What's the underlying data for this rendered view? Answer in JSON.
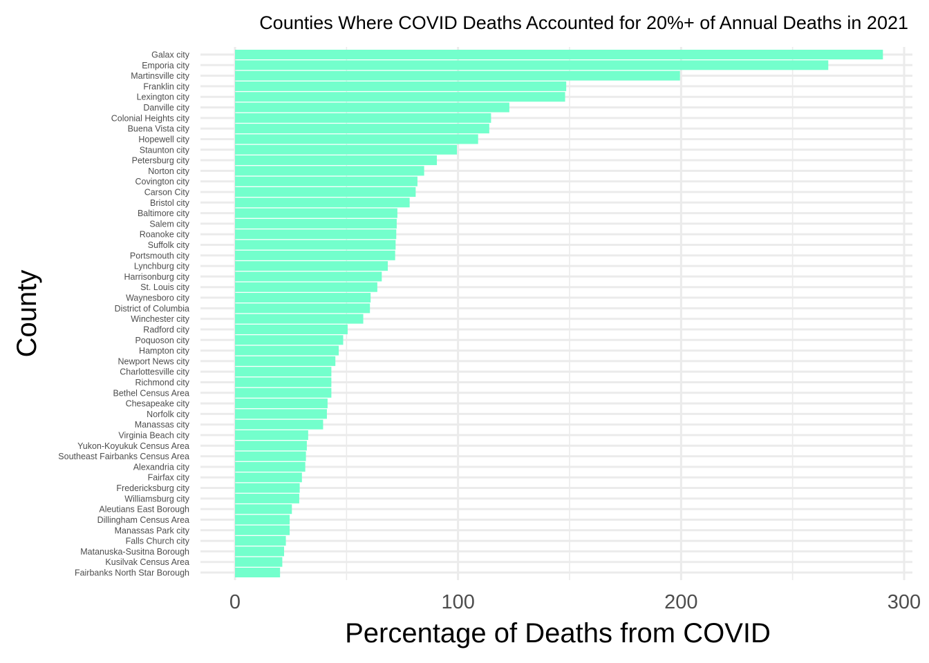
{
  "chart_data": {
    "type": "bar",
    "orientation": "horizontal",
    "title": "Counties Where COVID Deaths Accounted for 20%+ of Annual Deaths in 2021",
    "xlabel": "Percentage of Deaths from COVID",
    "ylabel": "County",
    "xlim": [
      0,
      300
    ],
    "xticks": [
      "0",
      "100",
      "200",
      "300"
    ],
    "grid": true,
    "bar_color": "#73FFCC",
    "grid_color": "#EBEBEB",
    "categories": [
      "Galax city",
      "Emporia city",
      "Martinsville city",
      "Franklin city",
      "Lexington city",
      "Danville city",
      "Colonial Heights city",
      "Buena Vista city",
      "Hopewell city",
      "Staunton city",
      "Petersburg city",
      "Norton city",
      "Covington city",
      "Carson City",
      "Bristol city",
      "Baltimore city",
      "Salem city",
      "Roanoke city",
      "Suffolk city",
      "Portsmouth city",
      "Lynchburg city",
      "Harrisonburg city",
      "St. Louis city",
      "Waynesboro city",
      "District of Columbia",
      "Winchester city",
      "Radford city",
      "Poquoson city",
      "Hampton city",
      "Newport News city",
      "Charlottesville city",
      "Richmond city",
      "Bethel Census Area",
      "Chesapeake city",
      "Norfolk city",
      "Manassas city",
      "Virginia Beach city",
      "Yukon-Koyukuk Census Area",
      "Southeast Fairbanks Census Area",
      "Alexandria city",
      "Fairfax city",
      "Fredericksburg city",
      "Williamsburg city",
      "Aleutians East Borough",
      "Dillingham Census Area",
      "Manassas Park city",
      "Falls Church city",
      "Matanuska-Susitna Borough",
      "Kusilvak Census Area",
      "Fairbanks North Star Borough"
    ],
    "values": [
      290.5,
      266.0,
      199.5,
      148.5,
      148.0,
      123.0,
      114.8,
      114.0,
      109.0,
      99.5,
      90.5,
      84.8,
      81.8,
      81.0,
      78.3,
      72.8,
      72.5,
      72.3,
      72.0,
      71.8,
      68.5,
      65.8,
      63.8,
      60.8,
      60.5,
      57.5,
      50.5,
      48.5,
      46.5,
      45.0,
      43.2,
      43.2,
      43.2,
      41.5,
      41.2,
      39.5,
      32.8,
      32.2,
      31.8,
      31.5,
      30.0,
      29.0,
      28.8,
      25.5,
      24.5,
      24.5,
      22.8,
      22.0,
      21.2,
      20.2
    ]
  }
}
